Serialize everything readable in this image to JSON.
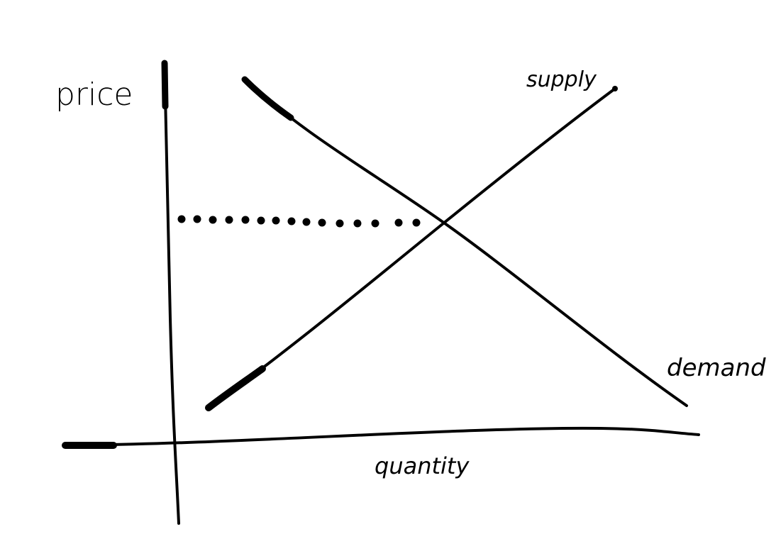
{
  "labels": {
    "y_axis": "price",
    "x_axis": "quantity",
    "supply": "supply",
    "demand": "demand"
  },
  "colors": {
    "ink": "#000000",
    "paper": "#ffffff"
  },
  "chart_data": {
    "type": "line",
    "title": "",
    "xlabel": "quantity",
    "ylabel": "price",
    "series": [
      {
        "name": "supply",
        "shape": "upward-sloping"
      },
      {
        "name": "demand",
        "shape": "downward-sloping"
      }
    ],
    "annotations": [
      {
        "kind": "dotted-guide",
        "from": "price-axis",
        "to": "supply-demand-intersection"
      }
    ],
    "grid": false
  }
}
